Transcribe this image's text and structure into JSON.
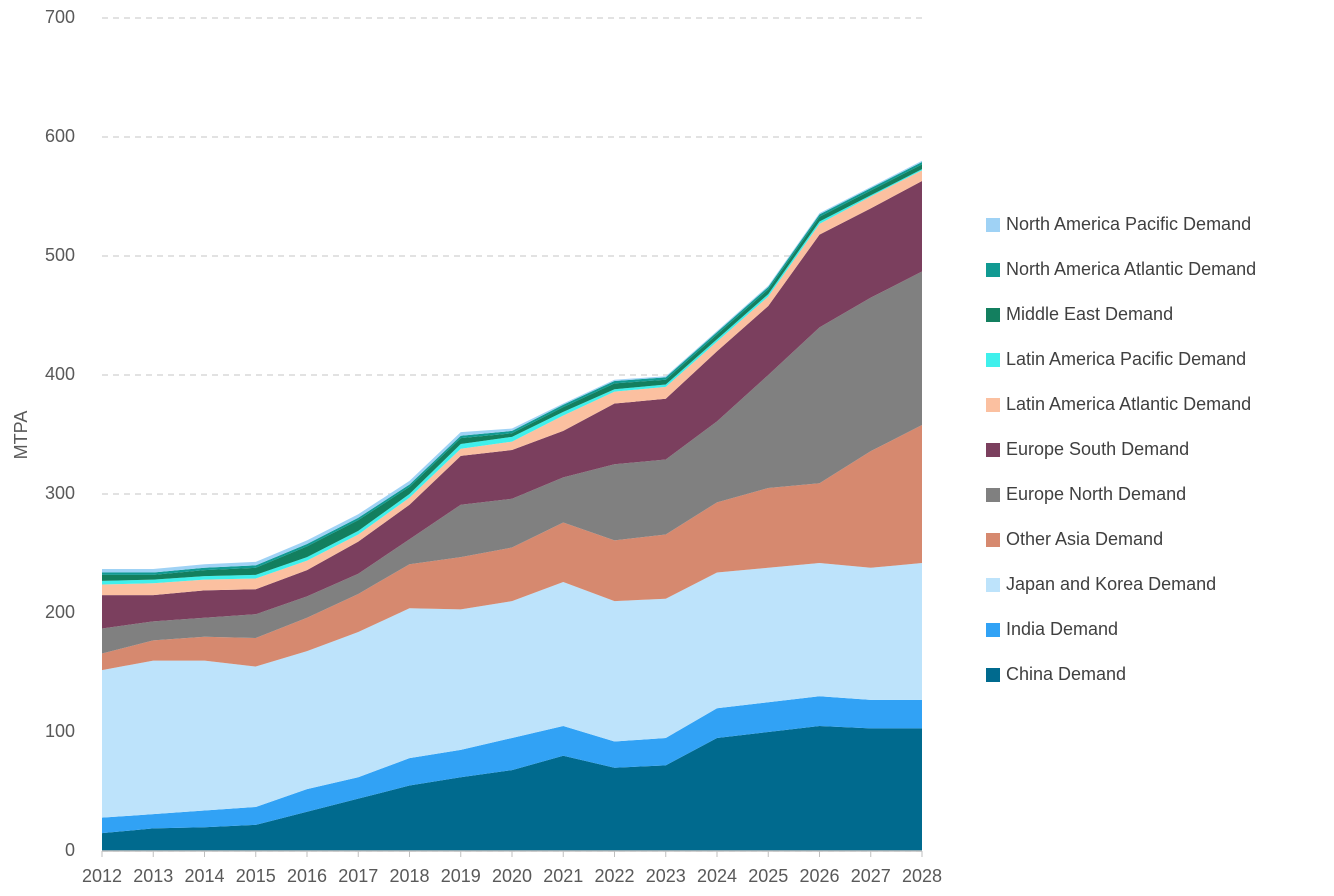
{
  "chart_data": {
    "type": "stacked-area",
    "y_label": "MTPA",
    "x": [
      2012,
      2013,
      2014,
      2015,
      2016,
      2017,
      2018,
      2019,
      2020,
      2021,
      2022,
      2023,
      2024,
      2025,
      2026,
      2027,
      2028
    ],
    "xlim": [
      2012,
      2028
    ],
    "ylim": [
      0,
      700
    ],
    "yticks": [
      0,
      100,
      200,
      300,
      400,
      500,
      600,
      700
    ],
    "grid": true,
    "series": [
      {
        "name": "China Demand",
        "color": "#006a8e",
        "values": [
          15,
          19,
          20,
          22,
          33,
          44,
          55,
          62,
          68,
          80,
          70,
          72,
          95,
          100,
          105,
          103,
          103
        ]
      },
      {
        "name": "India Demand",
        "color": "#31a2f5",
        "values": [
          13,
          12,
          14,
          15,
          19,
          18,
          23,
          23,
          27,
          25,
          22,
          23,
          25,
          25,
          25,
          24,
          24
        ]
      },
      {
        "name": "Japan and Korea Demand",
        "color": "#bde3fb",
        "values": [
          124,
          129,
          126,
          118,
          116,
          122,
          126,
          118,
          115,
          121,
          118,
          117,
          114,
          113,
          112,
          111,
          115
        ]
      },
      {
        "name": "Other Asia Demand",
        "color": "#d6896f",
        "values": [
          14,
          17,
          20,
          24,
          28,
          32,
          37,
          44,
          45,
          50,
          51,
          54,
          59,
          67,
          67,
          98,
          116
        ]
      },
      {
        "name": "Europe North Demand",
        "color": "#808080",
        "values": [
          21,
          16,
          16,
          20,
          18,
          17,
          21,
          44,
          41,
          38,
          64,
          63,
          68,
          95,
          131,
          129,
          129
        ]
      },
      {
        "name": "Europe South Demand",
        "color": "#7b3f5e",
        "values": [
          28,
          22,
          23,
          21,
          22,
          27,
          29,
          41,
          41,
          39,
          51,
          51,
          59,
          58,
          78,
          75,
          76
        ]
      },
      {
        "name": "Latin America Atlantic Demand",
        "color": "#fbc0a0",
        "values": [
          9,
          10,
          9,
          9,
          8,
          6,
          6,
          6,
          7,
          13,
          10,
          10,
          8,
          8,
          9,
          10,
          9
        ]
      },
      {
        "name": "Latin America Pacific Demand",
        "color": "#3ff0ec",
        "values": [
          3,
          3,
          3,
          3,
          3,
          3,
          3,
          4,
          4,
          3,
          2,
          2,
          2,
          2,
          2,
          1,
          1
        ]
      },
      {
        "name": "Middle East Demand",
        "color": "#137f5f",
        "values": [
          5,
          4,
          5,
          6,
          9,
          9,
          6,
          5,
          3,
          4,
          5,
          4,
          4,
          4,
          4,
          4,
          4
        ]
      },
      {
        "name": "North America Atlantic Demand",
        "color": "#119a92",
        "values": [
          2,
          2,
          2,
          2,
          2,
          2,
          2,
          2,
          2,
          2,
          2,
          2,
          2,
          2,
          2,
          2,
          2
        ]
      },
      {
        "name": "North America Pacific Demand",
        "color": "#9fd2f5",
        "values": [
          3,
          3,
          3,
          3,
          3,
          3,
          3,
          3,
          2,
          1,
          1,
          1,
          1,
          1,
          1,
          1,
          1
        ]
      }
    ]
  }
}
